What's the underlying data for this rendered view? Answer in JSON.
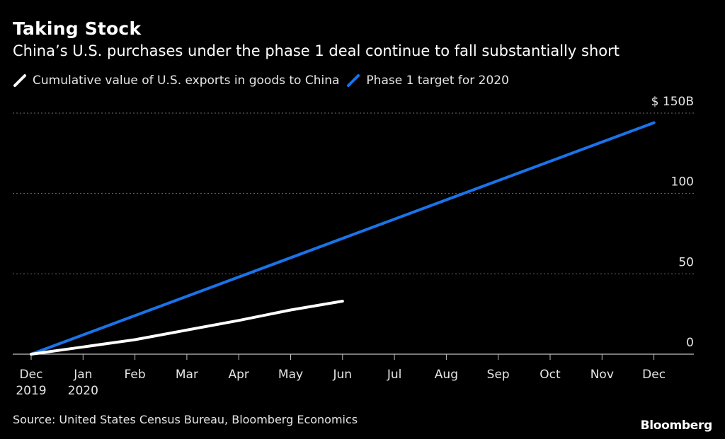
{
  "header": {
    "title": "Taking Stock",
    "subtitle": "China’s U.S. purchases under the phase 1 deal continue to fall substantially short"
  },
  "legend": {
    "items": [
      {
        "label": "Cumulative value of U.S. exports in goods to China",
        "color": "#ffffff"
      },
      {
        "label": "Phase 1 target for 2020",
        "color": "#1a73e8"
      }
    ]
  },
  "footer": {
    "source": "Source: United States Census Bureau, Bloomberg Economics",
    "logo": "Bloomberg"
  },
  "chart_data": {
    "type": "line",
    "x_tick_labels": [
      [
        "Dec",
        "2019"
      ],
      [
        "Jan",
        "2020"
      ],
      [
        "Feb"
      ],
      [
        "Mar"
      ],
      [
        "Apr"
      ],
      [
        "May"
      ],
      [
        "Jun"
      ],
      [
        "Jul"
      ],
      [
        "Aug"
      ],
      [
        "Sep"
      ],
      [
        "Oct"
      ],
      [
        "Nov"
      ],
      [
        "Dec"
      ]
    ],
    "y_ticks": [
      0,
      50,
      100,
      150
    ],
    "y_tick_labels": [
      "0",
      "50",
      "100",
      "$ 150B"
    ],
    "ylim": [
      0,
      150
    ],
    "grid": true,
    "series": [
      {
        "name": "Cumulative value of U.S. exports in goods to China",
        "color": "#ffffff",
        "points": [
          [
            0,
            0
          ],
          [
            1,
            4.5
          ],
          [
            2,
            9
          ],
          [
            3,
            15
          ],
          [
            4,
            21
          ],
          [
            5,
            27.5
          ],
          [
            6,
            33
          ]
        ]
      },
      {
        "name": "Phase 1 target for 2020",
        "color": "#1a73e8",
        "points": [
          [
            0,
            0
          ],
          [
            12,
            144
          ]
        ]
      }
    ]
  }
}
